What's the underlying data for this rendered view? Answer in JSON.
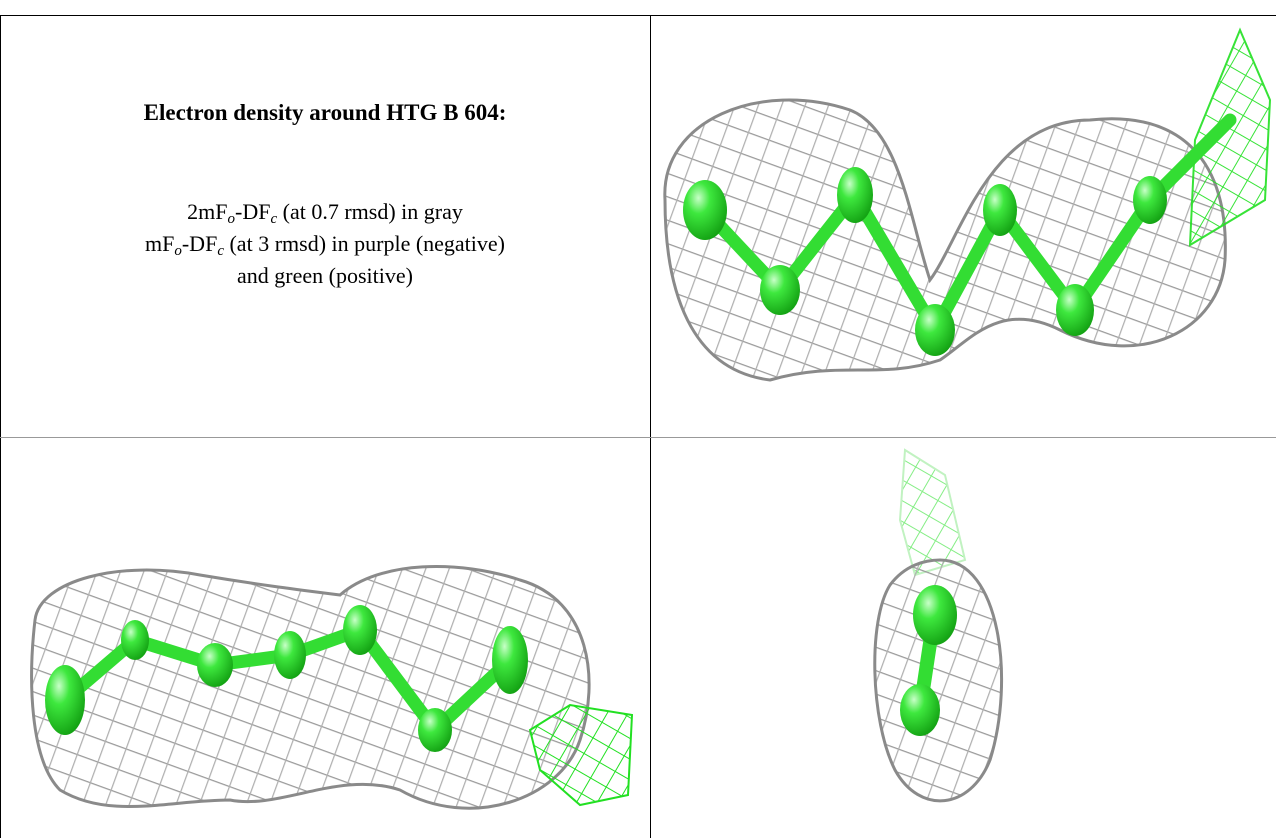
{
  "header": {
    "title": "Electron density around HTG B 604:"
  },
  "legend": {
    "lines": [
      [
        "2mF",
        "o",
        "-DF",
        "c",
        " (at 0.7 rmsd) in gray"
      ],
      [
        "mF",
        "o",
        "-DF",
        "c",
        " (at 3 rmsd) in purple (negative)"
      ],
      [
        "and green (positive)"
      ]
    ]
  }
}
